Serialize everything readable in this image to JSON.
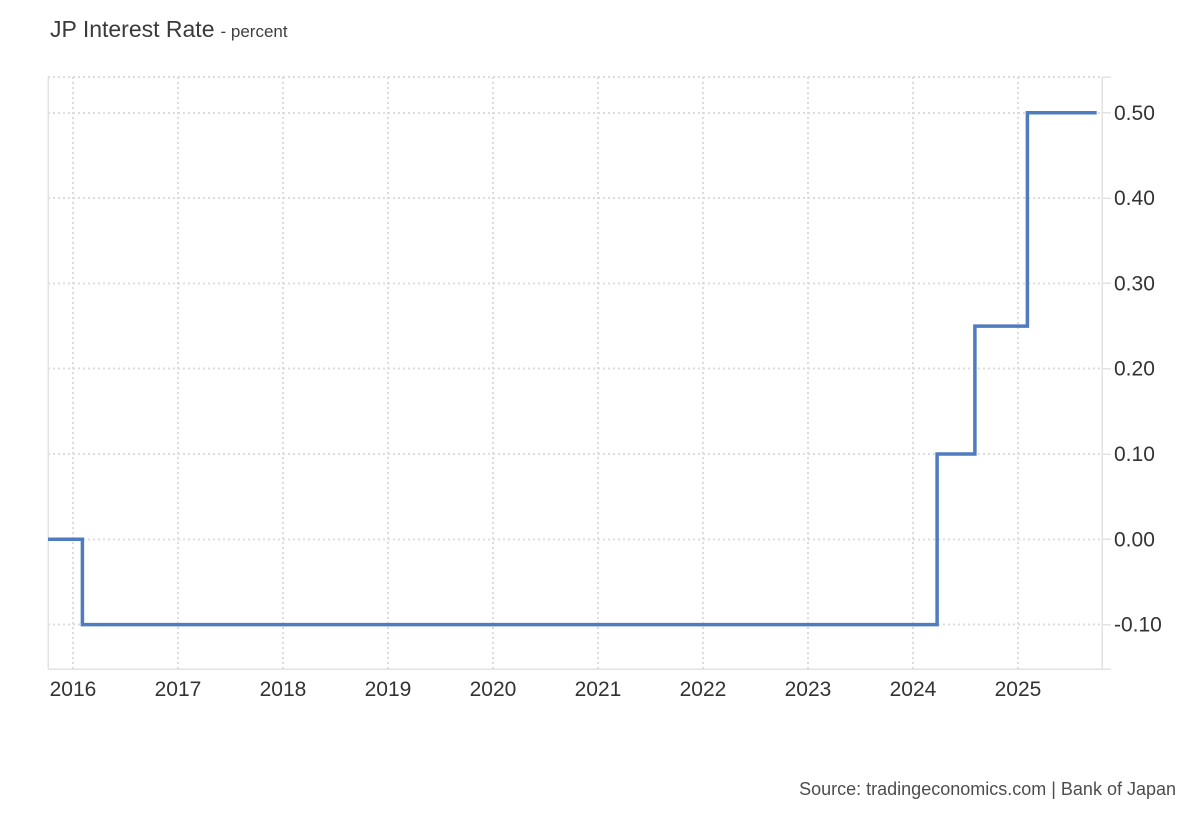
{
  "page": {
    "title_main": "JP Interest Rate",
    "title_sub": "- percent",
    "source": "Source: tradingeconomics.com | Bank of Japan"
  },
  "colors": {
    "line": "#4e7cbf",
    "grid": "#dcdcdc",
    "border": "#e2e2e2",
    "axis_text": "#333333",
    "title_text": "#3a3a3a",
    "source_text": "#4d4d4d",
    "background": "#ffffff"
  },
  "chart_data": {
    "type": "line",
    "step": "after",
    "title": "JP Interest Rate",
    "ylabel": "percent",
    "xlabel": "",
    "grid": true,
    "legend": false,
    "y_axis_position": "right",
    "xlim": [
      2015.762,
      2025.8
    ],
    "ylim": [
      -0.152,
      0.542
    ],
    "x_ticks": [
      {
        "v": 2016,
        "label": "2016"
      },
      {
        "v": 2017,
        "label": "2017"
      },
      {
        "v": 2018,
        "label": "2018"
      },
      {
        "v": 2019,
        "label": "2019"
      },
      {
        "v": 2020,
        "label": "2020"
      },
      {
        "v": 2021,
        "label": "2021"
      },
      {
        "v": 2022,
        "label": "2022"
      },
      {
        "v": 2023,
        "label": "2023"
      },
      {
        "v": 2024,
        "label": "2024"
      },
      {
        "v": 2025,
        "label": "2025"
      }
    ],
    "y_ticks": [
      {
        "v": 0.5,
        "label": "0.50"
      },
      {
        "v": 0.4,
        "label": "0.40"
      },
      {
        "v": 0.3,
        "label": "0.30"
      },
      {
        "v": 0.2,
        "label": "0.20"
      },
      {
        "v": 0.1,
        "label": "0.10"
      },
      {
        "v": 0.0,
        "label": "0.00"
      },
      {
        "v": -0.1,
        "label": "-0.10"
      }
    ],
    "series": [
      {
        "name": "JP Interest Rate",
        "points": [
          {
            "x": 2015.762,
            "y": 0.0
          },
          {
            "x": 2016.09,
            "y": -0.1
          },
          {
            "x": 2024.23,
            "y": 0.1
          },
          {
            "x": 2024.59,
            "y": 0.25
          },
          {
            "x": 2025.09,
            "y": 0.5
          },
          {
            "x": 2025.75,
            "y": 0.5
          }
        ]
      }
    ]
  }
}
